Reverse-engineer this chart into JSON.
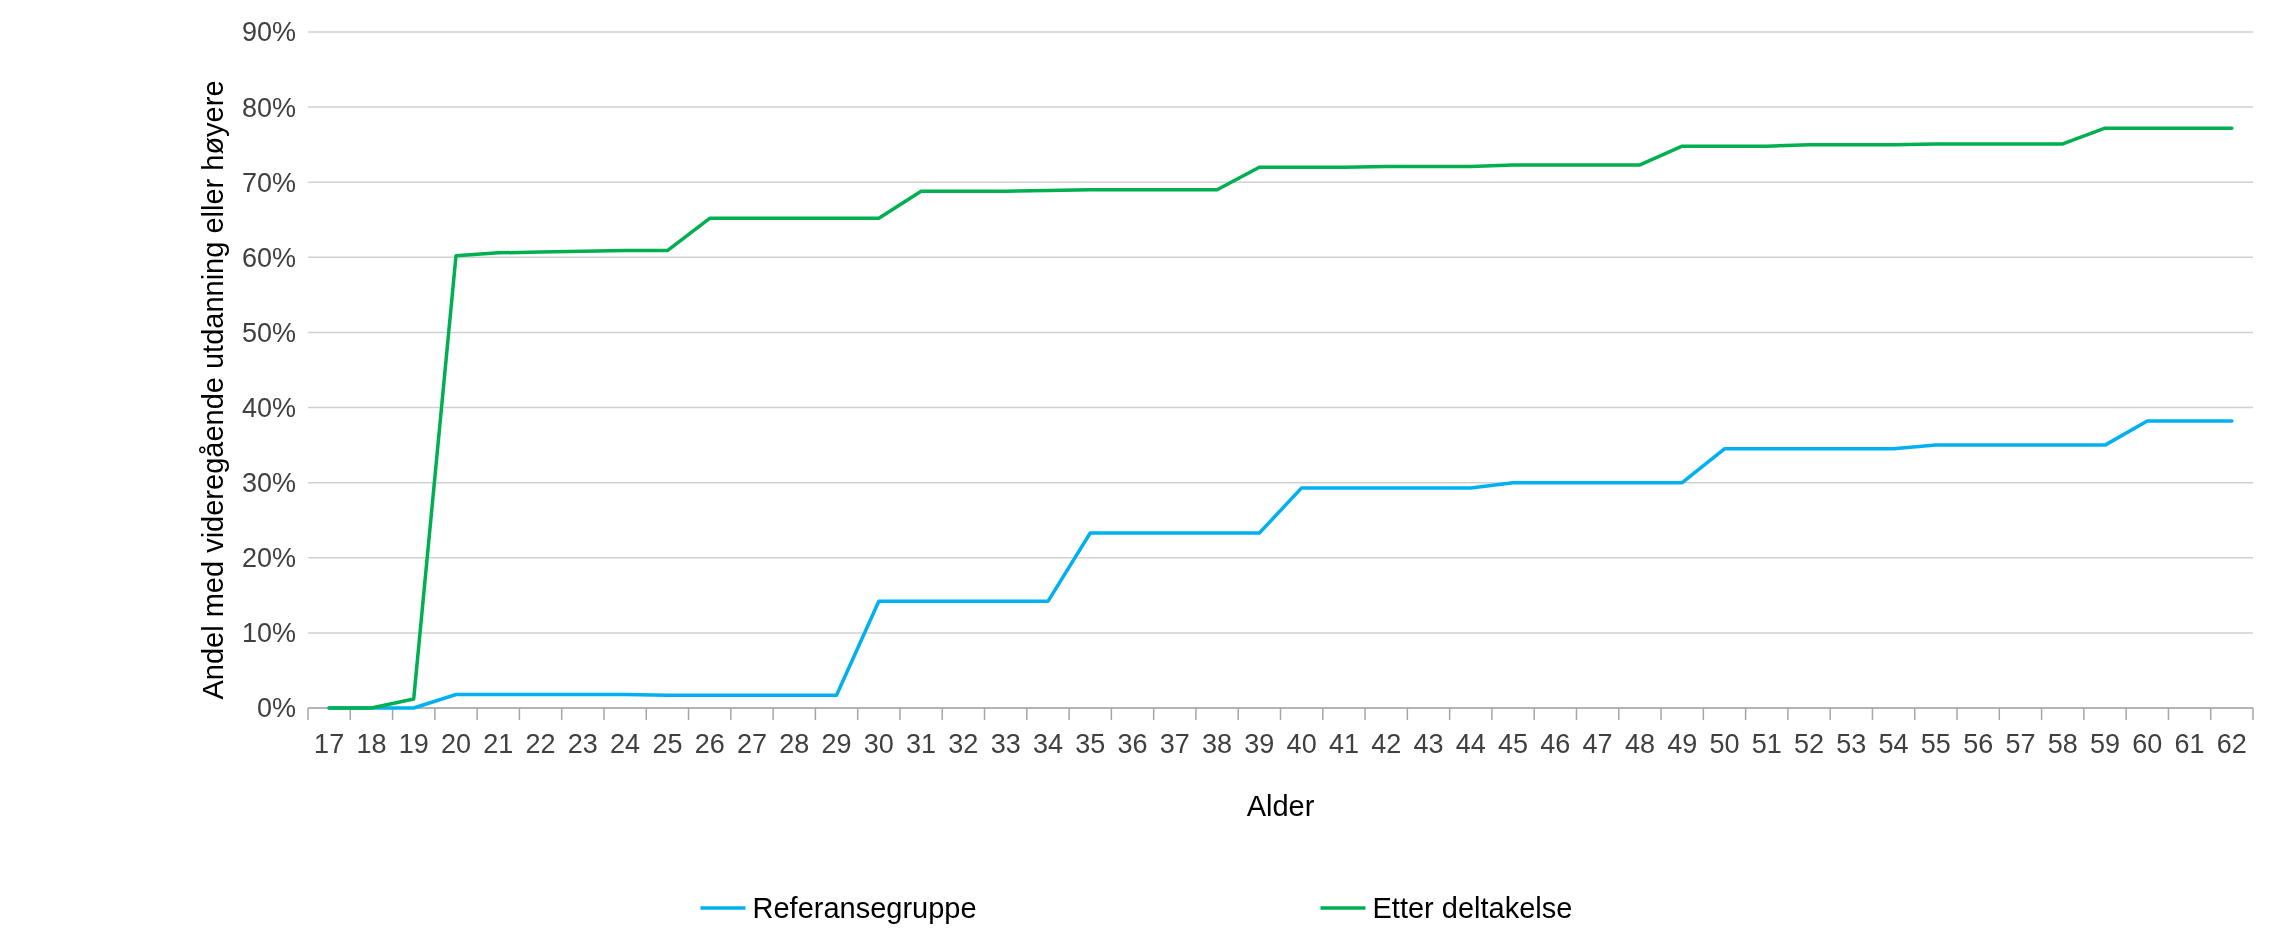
{
  "chart_data": {
    "type": "line",
    "xlabel": "Alder",
    "ylabel": "Andel med videregående utdanning eller høyere",
    "categories": [
      "17",
      "18",
      "19",
      "20",
      "21",
      "22",
      "23",
      "24",
      "25",
      "26",
      "27",
      "28",
      "29",
      "30",
      "31",
      "32",
      "33",
      "34",
      "35",
      "36",
      "37",
      "38",
      "39",
      "40",
      "41",
      "42",
      "43",
      "44",
      "45",
      "46",
      "47",
      "48",
      "49",
      "50",
      "51",
      "52",
      "53",
      "54",
      "55",
      "56",
      "57",
      "58",
      "59",
      "60",
      "61",
      "62"
    ],
    "series": [
      {
        "name": "Referansegruppe",
        "color": "#00b0f0",
        "values": [
          0,
          0,
          0,
          1.8,
          1.8,
          1.8,
          1.8,
          1.8,
          1.7,
          1.7,
          1.7,
          1.7,
          1.7,
          14.2,
          14.2,
          14.2,
          14.2,
          14.2,
          23.3,
          23.3,
          23.3,
          23.3,
          23.3,
          29.3,
          29.3,
          29.3,
          29.3,
          29.3,
          30.0,
          30.0,
          30.0,
          30.0,
          30.0,
          34.5,
          34.5,
          34.5,
          34.5,
          34.5,
          35.0,
          35.0,
          35.0,
          35.0,
          35.0,
          38.2,
          38.2,
          38.2
        ]
      },
      {
        "name": "Etter deltakelse",
        "color": "#00b050",
        "values": [
          0,
          0,
          1.2,
          60.2,
          60.6,
          60.7,
          60.8,
          60.9,
          60.9,
          65.2,
          65.2,
          65.2,
          65.2,
          65.2,
          68.8,
          68.8,
          68.8,
          68.9,
          69.0,
          69.0,
          69.0,
          69.0,
          72.0,
          72.0,
          72.0,
          72.1,
          72.1,
          72.1,
          72.3,
          72.3,
          72.3,
          72.3,
          74.8,
          74.8,
          74.8,
          75.0,
          75.0,
          75.0,
          75.1,
          75.1,
          75.1,
          75.1,
          77.2,
          77.2,
          77.2,
          77.2
        ]
      }
    ],
    "ylim": [
      0,
      90
    ],
    "yticks": [
      {
        "value": 0,
        "label": "0%"
      },
      {
        "value": 10,
        "label": "10%"
      },
      {
        "value": 20,
        "label": "20%"
      },
      {
        "value": 30,
        "label": "30%"
      },
      {
        "value": 40,
        "label": "40%"
      },
      {
        "value": 50,
        "label": "50%"
      },
      {
        "value": 60,
        "label": "60%"
      },
      {
        "value": 70,
        "label": "70%"
      },
      {
        "value": 80,
        "label": "80%"
      },
      {
        "value": 90,
        "label": "90%"
      }
    ],
    "grid": "y",
    "legend": "bottom",
    "marker": "none",
    "line_style": "solid"
  }
}
